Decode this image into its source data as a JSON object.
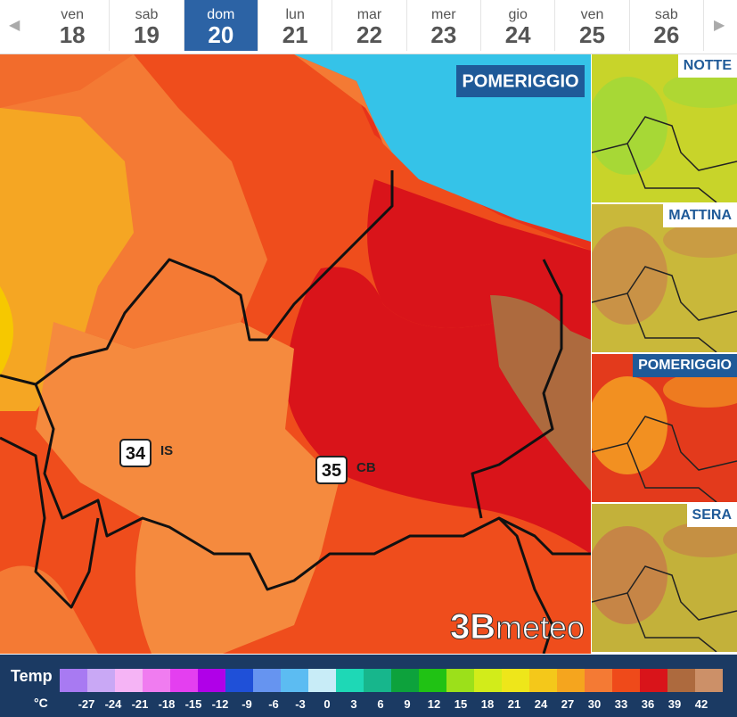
{
  "nav": {
    "days": [
      {
        "name": "ven",
        "num": "18"
      },
      {
        "name": "sab",
        "num": "19"
      },
      {
        "name": "dom",
        "num": "20",
        "selected": true
      },
      {
        "name": "lun",
        "num": "21"
      },
      {
        "name": "mar",
        "num": "22"
      },
      {
        "name": "mer",
        "num": "23"
      },
      {
        "name": "gio",
        "num": "24"
      },
      {
        "name": "ven",
        "num": "25"
      },
      {
        "name": "sab",
        "num": "26"
      }
    ]
  },
  "map": {
    "period": "POMERIGGIO",
    "cities": [
      {
        "value": "34",
        "name": "IS"
      },
      {
        "value": "35",
        "name": "CB"
      }
    ],
    "logo_mark": "3B",
    "logo": "meteo"
  },
  "thumbnails": [
    {
      "label": "NOTTE"
    },
    {
      "label": "MATTINA"
    },
    {
      "label": "POMERIGGIO",
      "active": true
    },
    {
      "label": "SERA"
    }
  ],
  "legend": {
    "title": "Temp",
    "unit": "°C",
    "colors": [
      "#a87af2",
      "#c9a8f5",
      "#f5b4f5",
      "#f07cf0",
      "#e43ff0",
      "#b000e8",
      "#1f50d8",
      "#6694f0",
      "#5cbcf2",
      "#c8ecf7",
      "#1ed8b6",
      "#17b68c",
      "#0da23c",
      "#20c214",
      "#9ce01a",
      "#d2ec1a",
      "#eee61a",
      "#f4c81a",
      "#f5a51e",
      "#f47a34",
      "#ef4a1a",
      "#d9141a",
      "#ad6a3e",
      "#cc9068"
    ],
    "ticks": [
      -27,
      -24,
      -21,
      -18,
      -15,
      -12,
      -9,
      -6,
      -3,
      0,
      3,
      6,
      9,
      12,
      15,
      18,
      21,
      24,
      27,
      30,
      33,
      36,
      39,
      42
    ]
  }
}
